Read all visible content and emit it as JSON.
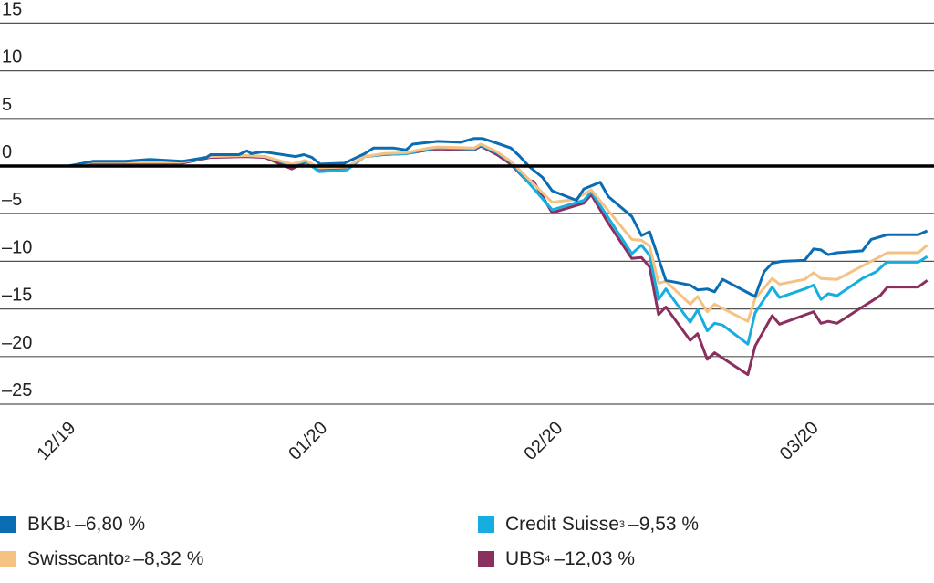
{
  "chart_data": {
    "type": "line",
    "title": "",
    "xlabel": "",
    "ylabel": "",
    "ylim": [
      -25,
      15
    ],
    "yticks": [
      15,
      10,
      5,
      0,
      -5,
      -10,
      -15,
      -20,
      -25
    ],
    "ytick_labels": [
      "15",
      "10",
      "5",
      "0",
      "–5",
      "–10",
      "–15",
      "–20",
      "–25"
    ],
    "x_unit": "days since start of 12/19",
    "xlim": [
      0,
      106
    ],
    "xticks": [
      {
        "x": 1,
        "label": "12/19"
      },
      {
        "x": 32,
        "label": "01/20"
      },
      {
        "x": 61,
        "label": "02/20"
      },
      {
        "x": 92.5,
        "label": "03/20"
      }
    ],
    "grid": true,
    "legend_placement": "bottom",
    "series": [
      {
        "name": "BKB",
        "sup": "1",
        "final": "–6,80 %",
        "color": "#0a6db3",
        "points": [
          [
            0,
            0
          ],
          [
            3,
            0.5
          ],
          [
            7,
            0.5
          ],
          [
            10,
            0.7
          ],
          [
            14,
            0.5
          ],
          [
            17,
            0.9
          ],
          [
            17.5,
            1.2
          ],
          [
            21,
            1.2
          ],
          [
            22,
            1.6
          ],
          [
            22.5,
            1.3
          ],
          [
            24,
            1.5
          ],
          [
            28,
            1
          ],
          [
            29,
            1.2
          ],
          [
            30,
            0.9
          ],
          [
            31,
            0.2
          ],
          [
            34,
            0.3
          ],
          [
            36.5,
            1.3
          ],
          [
            37.6,
            1.9
          ],
          [
            40,
            1.9
          ],
          [
            41.6,
            1.7
          ],
          [
            42.4,
            2.3
          ],
          [
            45.5,
            2.6
          ],
          [
            48.3,
            2.5
          ],
          [
            50,
            2.9
          ],
          [
            51,
            2.9
          ],
          [
            52.8,
            2.4
          ],
          [
            54.5,
            1.9
          ],
          [
            55.5,
            1.1
          ],
          [
            56.7,
            0
          ],
          [
            58.4,
            -1.2
          ],
          [
            59.6,
            -2.6
          ],
          [
            62.6,
            -3.6
          ],
          [
            63.5,
            -2.4
          ],
          [
            65.5,
            -1.7
          ],
          [
            66.5,
            -3.2
          ],
          [
            69.4,
            -5.3
          ],
          [
            70.6,
            -7.3
          ],
          [
            71.6,
            -6.9
          ],
          [
            73.6,
            -12
          ],
          [
            76.6,
            -12.5
          ],
          [
            77.5,
            -13
          ],
          [
            78.7,
            -12.9
          ],
          [
            79.6,
            -13.2
          ],
          [
            80.6,
            -11.9
          ],
          [
            84.6,
            -13.7
          ],
          [
            85.7,
            -11.1
          ],
          [
            86.7,
            -10.2
          ],
          [
            87.9,
            -10
          ],
          [
            90.7,
            -9.9
          ],
          [
            91.8,
            -8.7
          ],
          [
            92.7,
            -8.8
          ],
          [
            93.6,
            -9.3
          ],
          [
            94.7,
            -9.1
          ],
          [
            97.8,
            -8.9
          ],
          [
            98.9,
            -7.7
          ],
          [
            100.9,
            -7.2
          ],
          [
            104.7,
            -7.2
          ],
          [
            105.8,
            -6.8
          ]
        ]
      },
      {
        "name": "Swisscanto",
        "sup": "2",
        "final": "–8,32 %",
        "color": "#f5c283",
        "points": [
          [
            0,
            0
          ],
          [
            2.8,
            0.4
          ],
          [
            14,
            0.4
          ],
          [
            17.4,
            1
          ],
          [
            21.9,
            1.1
          ],
          [
            24.2,
            1
          ],
          [
            27.5,
            0.2
          ],
          [
            29.2,
            0.6
          ],
          [
            30.9,
            -0.2
          ],
          [
            34.3,
            -0.1
          ],
          [
            36.5,
            1
          ],
          [
            38.8,
            1.3
          ],
          [
            41.6,
            1.4
          ],
          [
            44.4,
            1.9
          ],
          [
            45.5,
            2
          ],
          [
            50,
            1.9
          ],
          [
            50.8,
            2.3
          ],
          [
            52.8,
            1.5
          ],
          [
            54.5,
            0.5
          ],
          [
            59.6,
            -3.8
          ],
          [
            62.4,
            -3.5
          ],
          [
            64.4,
            -2.5
          ],
          [
            69.4,
            -7.7
          ],
          [
            70.6,
            -7.8
          ],
          [
            71.6,
            -8.4
          ],
          [
            72.7,
            -12.3
          ],
          [
            73.6,
            -12.1
          ],
          [
            76.6,
            -14.5
          ],
          [
            77.5,
            -13.7
          ],
          [
            78.7,
            -15.3
          ],
          [
            79.6,
            -14.5
          ],
          [
            83.7,
            -16.3
          ],
          [
            84.6,
            -13.9
          ],
          [
            86.7,
            -11.8
          ],
          [
            87.6,
            -12.4
          ],
          [
            90.7,
            -11.9
          ],
          [
            91.8,
            -11.2
          ],
          [
            92.7,
            -11.8
          ],
          [
            94.7,
            -11.9
          ],
          [
            97.8,
            -10.5
          ],
          [
            100.9,
            -9.1
          ],
          [
            104.7,
            -9.1
          ],
          [
            105.8,
            -8.3
          ]
        ]
      },
      {
        "name": "Credit Suisse",
        "sup": "3",
        "final": "–9,53 %",
        "color": "#16ade0",
        "points": [
          [
            0,
            0
          ],
          [
            2.8,
            0.4
          ],
          [
            14,
            0.4
          ],
          [
            17.4,
            1
          ],
          [
            21.9,
            1.1
          ],
          [
            24.2,
            1
          ],
          [
            27.5,
            0.1
          ],
          [
            29.2,
            0.5
          ],
          [
            30.9,
            -0.6
          ],
          [
            34.3,
            -0.4
          ],
          [
            36.5,
            1
          ],
          [
            38.8,
            1.2
          ],
          [
            41.6,
            1.3
          ],
          [
            44.4,
            1.8
          ],
          [
            45.5,
            1.9
          ],
          [
            50,
            1.8
          ],
          [
            50.8,
            2.2
          ],
          [
            52.8,
            1.4
          ],
          [
            54.5,
            0.4
          ],
          [
            59.6,
            -4.6
          ],
          [
            63.5,
            -3.6
          ],
          [
            64.4,
            -2.7
          ],
          [
            69.4,
            -9.2
          ],
          [
            70.6,
            -8.3
          ],
          [
            71.6,
            -9.4
          ],
          [
            72.7,
            -14
          ],
          [
            73.6,
            -12.9
          ],
          [
            76.6,
            -16.4
          ],
          [
            77.5,
            -15.1
          ],
          [
            78.7,
            -17.3
          ],
          [
            79.6,
            -16.5
          ],
          [
            80.6,
            -16.7
          ],
          [
            83.7,
            -18.7
          ],
          [
            84.6,
            -15.4
          ],
          [
            86.7,
            -12.7
          ],
          [
            87.6,
            -13.8
          ],
          [
            90.7,
            -12.9
          ],
          [
            91.8,
            -12.5
          ],
          [
            92.7,
            -14
          ],
          [
            93.6,
            -13.4
          ],
          [
            94.7,
            -13.6
          ],
          [
            97.8,
            -11.8
          ],
          [
            99.5,
            -11.1
          ],
          [
            100.8,
            -10.1
          ],
          [
            104.7,
            -10.1
          ],
          [
            105.8,
            -9.5
          ]
        ]
      },
      {
        "name": "UBS",
        "sup": "4",
        "final": "–12,03 %",
        "color": "#8b2f5f",
        "points": [
          [
            0,
            0
          ],
          [
            2.8,
            0.3
          ],
          [
            14,
            0.3
          ],
          [
            17.4,
            0.9
          ],
          [
            21.9,
            1
          ],
          [
            24.2,
            0.9
          ],
          [
            27.5,
            -0.3
          ],
          [
            29.2,
            0.4
          ],
          [
            30.9,
            -0.3
          ],
          [
            34.3,
            -0.2
          ],
          [
            36.5,
            1
          ],
          [
            38.8,
            1.2
          ],
          [
            41.6,
            1.3
          ],
          [
            44.4,
            1.7
          ],
          [
            45.5,
            1.8
          ],
          [
            50,
            1.7
          ],
          [
            50.8,
            2.1
          ],
          [
            52.8,
            1.2
          ],
          [
            54.5,
            0.2
          ],
          [
            56.4,
            -1.5
          ],
          [
            57.3,
            -1.6
          ],
          [
            59.6,
            -4.9
          ],
          [
            63.5,
            -3.9
          ],
          [
            64.4,
            -3
          ],
          [
            66.5,
            -6
          ],
          [
            69.4,
            -9.7
          ],
          [
            70.6,
            -9.6
          ],
          [
            71.6,
            -10.6
          ],
          [
            72.7,
            -15.6
          ],
          [
            73.6,
            -14.8
          ],
          [
            76.6,
            -18.3
          ],
          [
            77.5,
            -17.6
          ],
          [
            78.7,
            -20.3
          ],
          [
            79.6,
            -19.6
          ],
          [
            83.7,
            -21.9
          ],
          [
            84.6,
            -18.9
          ],
          [
            86.7,
            -15.7
          ],
          [
            87.6,
            -16.6
          ],
          [
            91.8,
            -15.3
          ],
          [
            92.7,
            -16.5
          ],
          [
            93.6,
            -16.3
          ],
          [
            94.7,
            -16.5
          ],
          [
            97.8,
            -14.8
          ],
          [
            99.1,
            -14.1
          ],
          [
            100,
            -13.6
          ],
          [
            100.9,
            -12.7
          ],
          [
            104.7,
            -12.7
          ],
          [
            105.8,
            -12
          ]
        ]
      }
    ]
  }
}
